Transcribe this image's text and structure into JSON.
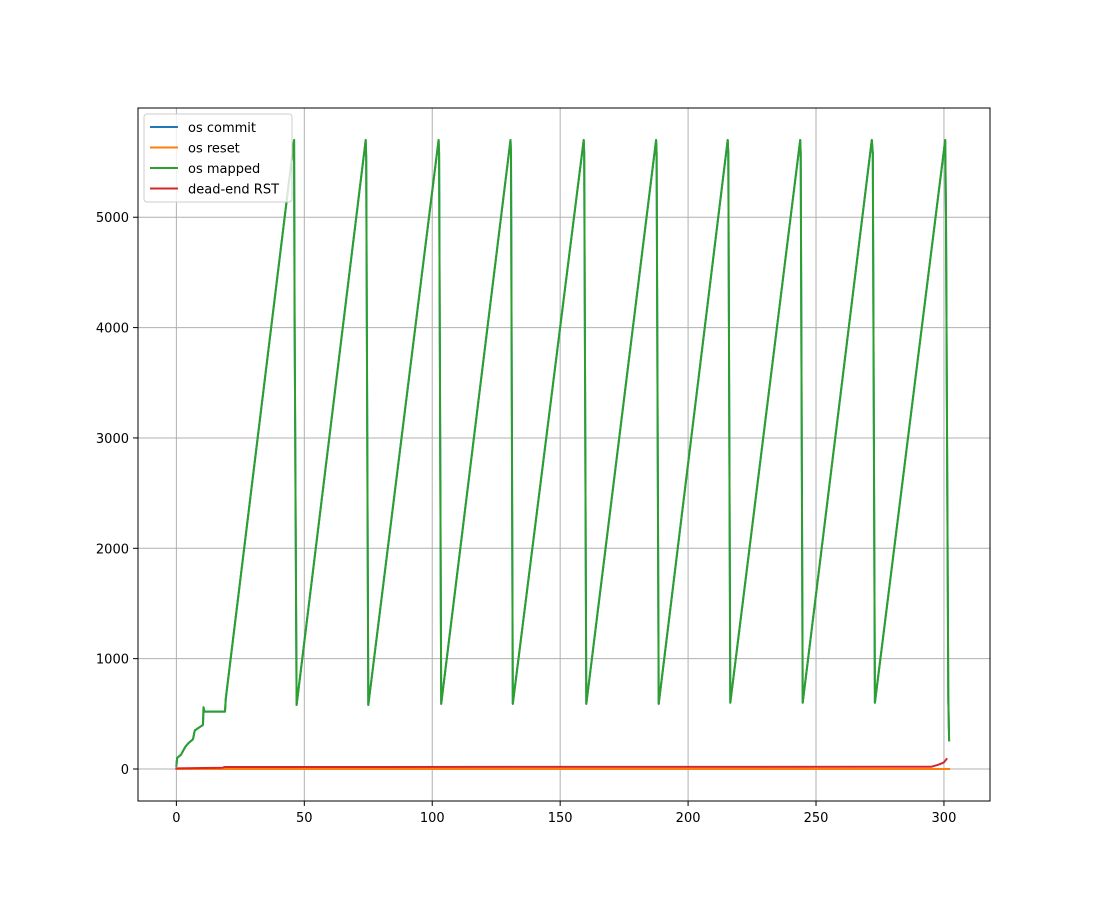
{
  "chart_data": {
    "type": "line",
    "title": "",
    "xlabel": "",
    "ylabel": "",
    "xlim": [
      -15,
      318
    ],
    "ylim": [
      -290,
      5990
    ],
    "xticks": [
      0,
      50,
      100,
      150,
      200,
      250,
      300
    ],
    "yticks": [
      0,
      1000,
      2000,
      3000,
      4000,
      5000
    ],
    "grid": true,
    "legend_position": "upper left",
    "series": [
      {
        "name": "os commit",
        "color": "#1f77b4",
        "x": [
          0,
          0.3,
          1.8,
          3.5,
          4.5,
          6.5,
          7.2,
          8.5,
          10.4,
          10.6,
          11,
          19,
          19.3,
          46,
          46.2,
          47,
          74,
          74.2,
          75,
          102.5,
          102.7,
          103.5,
          130.6,
          130.8,
          131.5,
          159.2,
          159.4,
          160.2,
          187.5,
          187.7,
          188.5,
          215.5,
          215.7,
          216.5,
          243.8,
          244,
          244.8,
          271.8,
          272.2,
          273,
          300.5,
          300.8,
          301.7,
          302
        ],
        "values": [
          30,
          100,
          130,
          200,
          230,
          270,
          350,
          370,
          400,
          560,
          520,
          520,
          640,
          5700,
          4100,
          580,
          5700,
          5550,
          580,
          5700,
          5580,
          590,
          5700,
          5580,
          590,
          5700,
          5580,
          590,
          5700,
          5580,
          590,
          5700,
          5580,
          600,
          5700,
          5580,
          600,
          5700,
          5580,
          600,
          5700,
          5000,
          640,
          260
        ]
      },
      {
        "name": "os reset",
        "color": "#ff7f0e",
        "x": [
          0,
          302
        ],
        "values": [
          0,
          0
        ]
      },
      {
        "name": "os mapped",
        "color": "#2ca02c",
        "x": [
          0,
          0.3,
          1.8,
          3.5,
          4.5,
          6.5,
          7.2,
          8.5,
          10.4,
          10.6,
          11,
          19,
          19.3,
          46,
          46.2,
          47,
          74,
          74.2,
          75,
          102.5,
          102.7,
          103.5,
          130.6,
          130.8,
          131.5,
          159.2,
          159.4,
          160.2,
          187.5,
          187.7,
          188.5,
          215.5,
          215.7,
          216.5,
          243.8,
          244,
          244.8,
          271.8,
          272.2,
          273,
          300.5,
          300.8,
          301.7,
          302
        ],
        "values": [
          30,
          100,
          130,
          200,
          230,
          270,
          350,
          370,
          400,
          560,
          520,
          520,
          640,
          5700,
          4100,
          580,
          5700,
          5550,
          580,
          5700,
          5580,
          590,
          5700,
          5580,
          590,
          5700,
          5580,
          590,
          5700,
          5580,
          590,
          5700,
          5580,
          600,
          5700,
          5580,
          600,
          5700,
          5580,
          600,
          5700,
          5000,
          640,
          260
        ]
      },
      {
        "name": "dead-end RST",
        "color": "#d62728",
        "x": [
          0,
          18,
          19,
          295,
          298,
          300,
          301
        ],
        "values": [
          5,
          12,
          18,
          20,
          40,
          60,
          90
        ]
      }
    ]
  }
}
